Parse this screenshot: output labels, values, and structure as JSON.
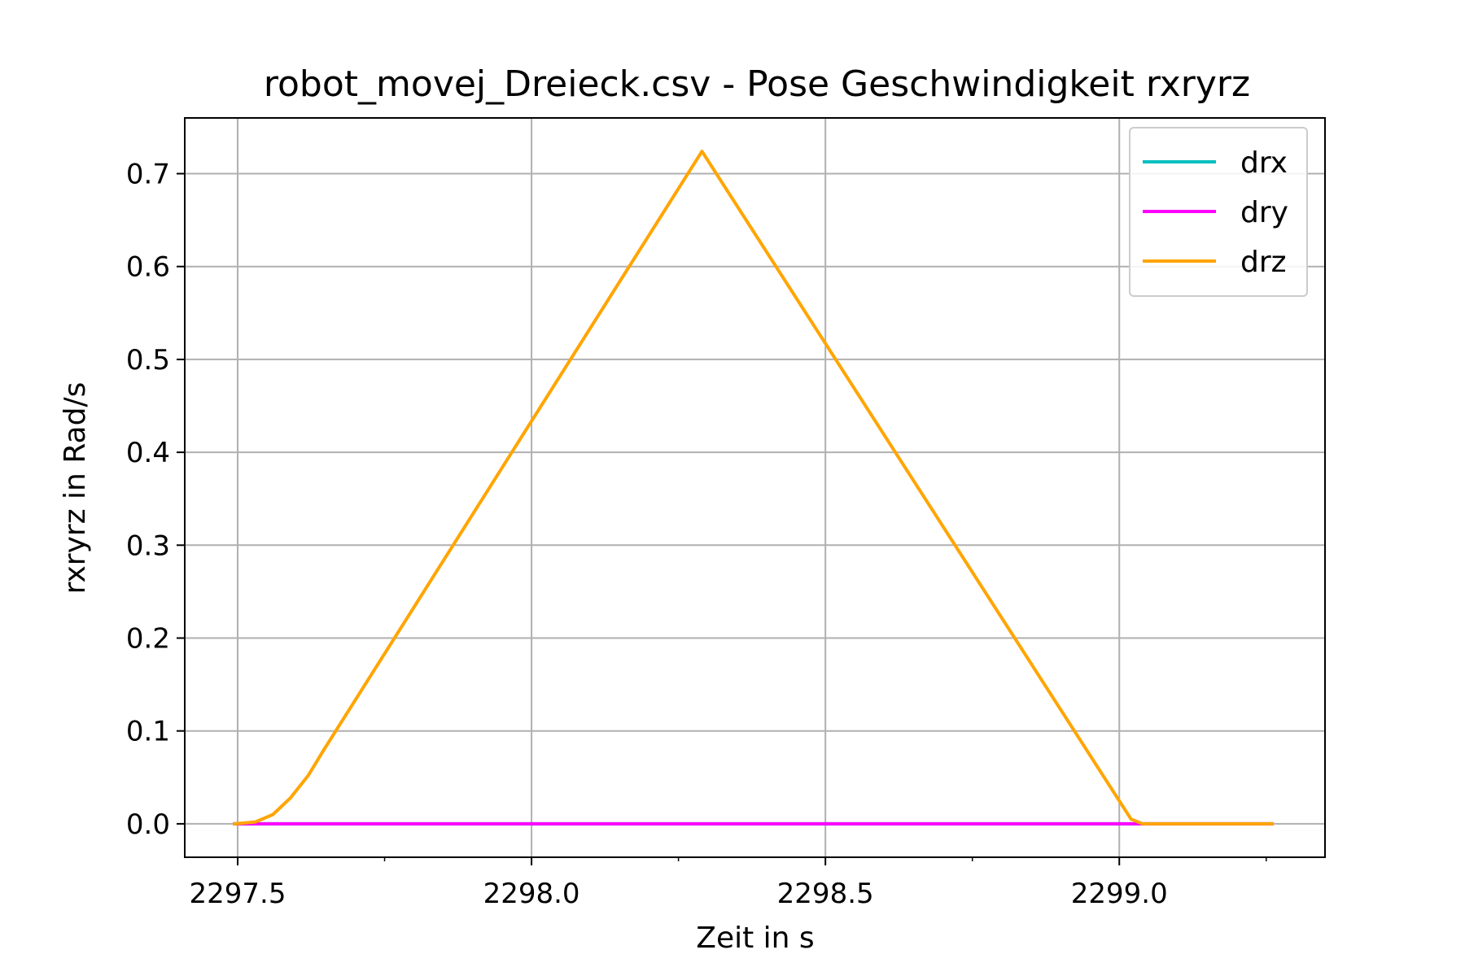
{
  "chart_data": {
    "type": "line",
    "title": "robot_movej_Dreieck.csv - Pose Geschwindigkeit rxryrz",
    "xlabel": "Zeit in s",
    "ylabel": "rxryrz in Rad/s",
    "xlim": [
      2297.41,
      2299.35
    ],
    "ylim": [
      -0.036,
      0.76
    ],
    "x_ticks": [
      2297.5,
      2298.0,
      2298.5,
      2299.0
    ],
    "x_tick_labels": [
      "2297.5",
      "2298.0",
      "2298.5",
      "2299.0"
    ],
    "x_minor_ticks": [
      2297.75,
      2298.25,
      2298.75,
      2299.25
    ],
    "y_ticks": [
      0.0,
      0.1,
      0.2,
      0.3,
      0.4,
      0.5,
      0.6,
      0.7
    ],
    "y_tick_labels": [
      "0.0",
      "0.1",
      "0.2",
      "0.3",
      "0.4",
      "0.5",
      "0.6",
      "0.7"
    ],
    "grid": true,
    "legend": "top-right",
    "series": [
      {
        "name": "drx",
        "color": "#00bfbf",
        "x": [
          2297.495,
          2299.26
        ],
        "y": [
          0.0,
          0.0
        ]
      },
      {
        "name": "dry",
        "color": "#ff00ff",
        "x": [
          2297.495,
          2299.26
        ],
        "y": [
          0.0,
          0.0
        ]
      },
      {
        "name": "drz",
        "color": "#ffa500",
        "x": [
          2297.495,
          2297.53,
          2297.56,
          2297.59,
          2297.62,
          2297.645,
          2298.29,
          2299.02,
          2299.04,
          2299.26
        ],
        "y": [
          0.0,
          0.002,
          0.01,
          0.028,
          0.052,
          0.078,
          0.724,
          0.005,
          0.0,
          0.0
        ]
      }
    ]
  }
}
